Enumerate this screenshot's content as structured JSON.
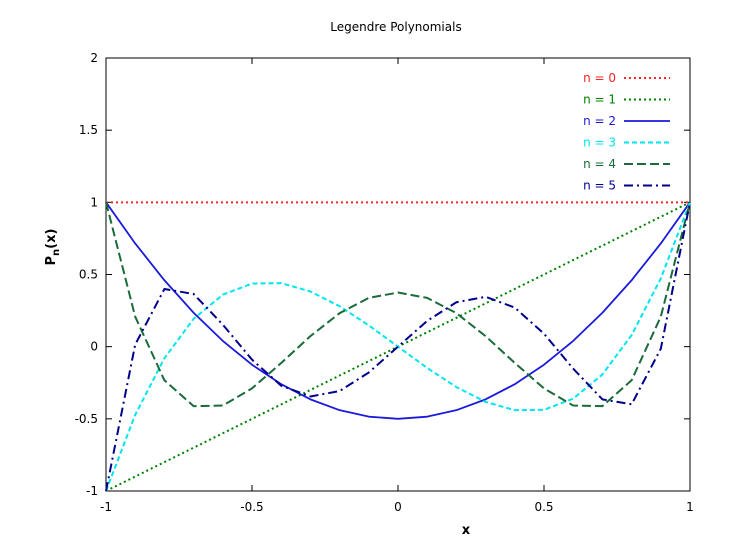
{
  "chart_data": {
    "type": "line",
    "title": "Legendre Polynomials",
    "xlabel": "x",
    "ylabel_main": "P",
    "ylabel_sub": "n",
    "ylabel_tail": "(x)",
    "xlim": [
      -1,
      1
    ],
    "ylim": [
      -1,
      2
    ],
    "xticks": [
      -1,
      -0.5,
      0,
      0.5,
      1
    ],
    "xtick_labels": [
      "-1",
      "-0.5",
      "0",
      "0.5",
      "1"
    ],
    "yticks": [
      -1,
      -0.5,
      0,
      0.5,
      1,
      1.5,
      2
    ],
    "ytick_labels": [
      "-1",
      "-0.5",
      "0",
      "0.5",
      "1",
      "1.5",
      "2"
    ],
    "grid": false,
    "legend_position": "top-right",
    "series": [
      {
        "name": "n = 0",
        "color": "#ff2222",
        "dash": "dotted",
        "x": [
          -1,
          -0.9,
          -0.8,
          -0.7,
          -0.6,
          -0.5,
          -0.4,
          -0.3,
          -0.2,
          -0.1,
          0,
          0.1,
          0.2,
          0.3,
          0.4,
          0.5,
          0.6,
          0.7,
          0.8,
          0.9,
          1
        ],
        "y": [
          1,
          1,
          1,
          1,
          1,
          1,
          1,
          1,
          1,
          1,
          1,
          1,
          1,
          1,
          1,
          1,
          1,
          1,
          1,
          1,
          1
        ]
      },
      {
        "name": "n = 1",
        "color": "#008000",
        "dash": "dotted",
        "x": [
          -1,
          -0.9,
          -0.8,
          -0.7,
          -0.6,
          -0.5,
          -0.4,
          -0.3,
          -0.2,
          -0.1,
          0,
          0.1,
          0.2,
          0.3,
          0.4,
          0.5,
          0.6,
          0.7,
          0.8,
          0.9,
          1
        ],
        "y": [
          -1,
          -0.9,
          -0.8,
          -0.7,
          -0.6,
          -0.5,
          -0.4,
          -0.3,
          -0.2,
          -0.1,
          0,
          0.1,
          0.2,
          0.3,
          0.4,
          0.5,
          0.6,
          0.7,
          0.8,
          0.9,
          1
        ]
      },
      {
        "name": "n = 2",
        "color": "#1a1add",
        "dash": "solid",
        "x": [
          -1,
          -0.9,
          -0.8,
          -0.7,
          -0.6,
          -0.5,
          -0.4,
          -0.3,
          -0.2,
          -0.1,
          0,
          0.1,
          0.2,
          0.3,
          0.4,
          0.5,
          0.6,
          0.7,
          0.8,
          0.9,
          1
        ],
        "y": [
          1,
          0.715,
          0.46,
          0.235,
          0.04,
          -0.125,
          -0.26,
          -0.365,
          -0.44,
          -0.485,
          -0.5,
          -0.485,
          -0.44,
          -0.365,
          -0.26,
          -0.125,
          0.04,
          0.235,
          0.46,
          0.715,
          1
        ]
      },
      {
        "name": "n = 3",
        "color": "#00e5ee",
        "dash": "dashed",
        "x": [
          -1,
          -0.9,
          -0.8,
          -0.7,
          -0.6,
          -0.5,
          -0.4,
          -0.3,
          -0.2,
          -0.1,
          0,
          0.1,
          0.2,
          0.3,
          0.4,
          0.5,
          0.6,
          0.7,
          0.8,
          0.9,
          1
        ],
        "y": [
          -1,
          -0.4725,
          -0.08,
          0.1925,
          0.36,
          0.4375,
          0.44,
          0.3825,
          0.28,
          0.1475,
          0,
          -0.1475,
          -0.28,
          -0.3825,
          -0.44,
          -0.4375,
          -0.36,
          -0.1925,
          0.08,
          0.4725,
          1
        ]
      },
      {
        "name": "n = 4",
        "color": "#1a6b3a",
        "dash": "longdash",
        "x": [
          -1,
          -0.9,
          -0.8,
          -0.7,
          -0.6,
          -0.5,
          -0.4,
          -0.3,
          -0.2,
          -0.1,
          0,
          0.1,
          0.2,
          0.3,
          0.4,
          0.5,
          0.6,
          0.7,
          0.8,
          0.9,
          1
        ],
        "y": [
          1,
          0.2079,
          -0.233,
          -0.4121,
          -0.408,
          -0.2891,
          -0.113,
          0.0729,
          0.232,
          0.3379,
          0.375,
          0.3379,
          0.232,
          0.0729,
          -0.113,
          -0.2891,
          -0.408,
          -0.4121,
          -0.233,
          0.2079,
          1
        ]
      },
      {
        "name": "n = 5",
        "color": "#00008b",
        "dash": "dashdot",
        "x": [
          -1,
          -0.9,
          -0.8,
          -0.7,
          -0.6,
          -0.5,
          -0.4,
          -0.3,
          -0.2,
          -0.1,
          0,
          0.1,
          0.2,
          0.3,
          0.4,
          0.5,
          0.6,
          0.7,
          0.8,
          0.9,
          1
        ],
        "y": [
          -1,
          0.0146,
          0.3995,
          0.3651,
          0.1526,
          -0.0898,
          -0.2706,
          -0.3452,
          -0.3076,
          -0.1788,
          0,
          0.1788,
          0.3076,
          0.3452,
          0.2706,
          0.0898,
          -0.1526,
          -0.3651,
          -0.3995,
          -0.0146,
          1
        ]
      }
    ]
  }
}
